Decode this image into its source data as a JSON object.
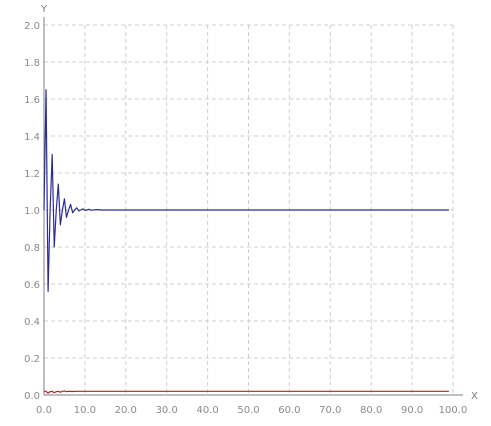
{
  "chart_data": {
    "type": "line",
    "title": "",
    "xlabel": "X",
    "ylabel": "Y",
    "xlim": [
      0,
      100
    ],
    "ylim": [
      0,
      2
    ],
    "x_ticks": [
      "0.0",
      "10.0",
      "20.0",
      "30.0",
      "40.0",
      "50.0",
      "60.0",
      "70.0",
      "80.0",
      "90.0",
      "100.0"
    ],
    "y_ticks": [
      "0.0",
      "0.2",
      "0.4",
      "0.6",
      "0.8",
      "1.0",
      "1.2",
      "1.4",
      "1.6",
      "1.8",
      "2.0"
    ],
    "grid": true,
    "series": [
      {
        "color": "#2b2b9a",
        "x": [
          0,
          0.5,
          1,
          1.5,
          2,
          2.5,
          3,
          3.5,
          4,
          4.5,
          5,
          5.5,
          6,
          6.5,
          7,
          7.5,
          8,
          8.5,
          9,
          9.5,
          10,
          10.5,
          11,
          11.5,
          12,
          13,
          14,
          15,
          20,
          30,
          40,
          50,
          60,
          70,
          80,
          90,
          99
        ],
        "y": [
          1.0,
          1.65,
          0.56,
          1.0,
          1.3,
          0.8,
          1.0,
          1.14,
          0.92,
          1.0,
          1.06,
          0.96,
          1.0,
          1.03,
          0.985,
          1.0,
          1.012,
          0.995,
          1.0,
          1.006,
          0.998,
          1.0,
          1.004,
          0.999,
          1.0,
          1.002,
          1.0,
          1.0,
          1.0,
          1.0,
          1.0,
          1.0,
          1.0,
          1.0,
          1.0,
          1.0,
          1.0
        ]
      },
      {
        "color": "#b02020",
        "x": [
          0,
          0.5,
          1,
          1.5,
          2,
          2.5,
          3,
          3.5,
          4,
          4.5,
          5,
          5.5,
          6,
          7,
          8,
          10,
          20,
          30,
          40,
          50,
          60,
          70,
          80,
          90,
          99
        ],
        "y": [
          0.02,
          0.02,
          0.01,
          0.018,
          0.02,
          0.012,
          0.018,
          0.02,
          0.015,
          0.02,
          0.022,
          0.018,
          0.02,
          0.019,
          0.02,
          0.02,
          0.02,
          0.02,
          0.02,
          0.02,
          0.02,
          0.02,
          0.02,
          0.02,
          0.02
        ]
      }
    ]
  }
}
